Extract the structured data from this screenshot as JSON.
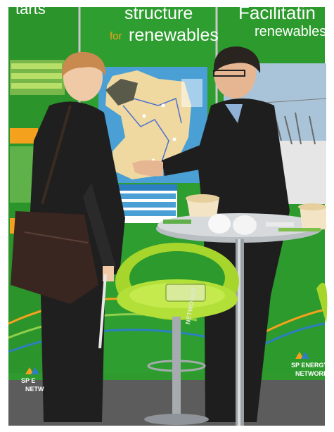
{
  "banners": {
    "left_heading": "tarts",
    "middle_heading_line1": "structure",
    "middle_heading_for": "for",
    "middle_heading_line2": "renewables",
    "right_heading_line1": "Facilitatin",
    "right_heading_line2": "renewables"
  },
  "brand": {
    "right_logo_line1": "SP ENERGY",
    "right_logo_line2": "NETWORK",
    "left_logo_line1": "SP E",
    "left_logo_line2": "NETW",
    "stand_logo": "NETWORKS"
  },
  "colors": {
    "banner_green": "#2f9a2e",
    "accent_orange": "#f4a11d",
    "stool_lime": "#a6d62c",
    "map_blue": "#4a9fd4"
  }
}
